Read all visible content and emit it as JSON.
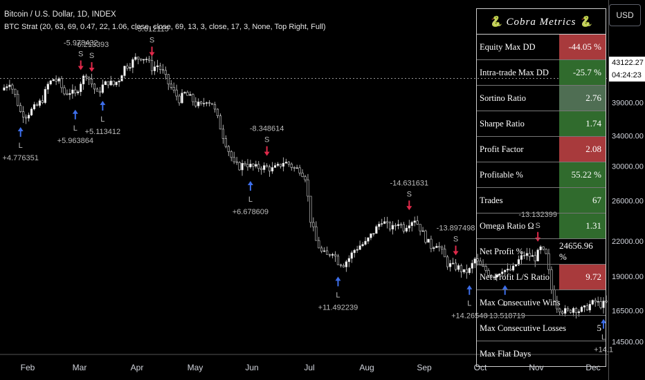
{
  "header": {
    "title": "Bitcoin / U.S. Dollar, 1D, INDEX",
    "strategy": "BTC Strat (20, 63, 69, 0.47, 22, 1.06, close, close, 69, 13, 3, close, 17, 3, None, Top Right, Full)"
  },
  "currency_button": "USD",
  "price_scale": {
    "current_price": "43122.27",
    "countdown": "04:24:23",
    "ticks": [
      "39000.00",
      "34000.00",
      "30000.00",
      "26000.00",
      "22000.00",
      "19000.00",
      "16500.00",
      "14500.00"
    ]
  },
  "metrics": {
    "title": "🐍 Cobra Metrics 🐍",
    "rows": [
      {
        "label": "Equity Max DD",
        "value": "-44.05 %",
        "status": "red"
      },
      {
        "label": "Intra-trade Max DD",
        "value": "-25.7 %",
        "status": "green"
      },
      {
        "label": "Sortino Ratio",
        "value": "2.76",
        "status": "grey"
      },
      {
        "label": "Sharpe Ratio",
        "value": "1.74",
        "status": "green"
      },
      {
        "label": "Profit Factor",
        "value": "2.08",
        "status": "red"
      },
      {
        "label": "Profitable %",
        "value": "55.22 %",
        "status": "green"
      },
      {
        "label": "Trades",
        "value": "67",
        "status": "green"
      },
      {
        "label": "Omega Ratio Ω",
        "value": "1.31",
        "status": "green"
      },
      {
        "label": "Net Profit %",
        "value": "24656.96 %",
        "status": "none"
      },
      {
        "label": "Net Profit L/S Ratio",
        "value": "9.72",
        "status": "red"
      },
      {
        "label": "Max Consecutive Wins",
        "value": "",
        "status": "none"
      },
      {
        "label": "Max Consecutive Losses",
        "value": "5",
        "status": "none"
      },
      {
        "label": "Max Flat Days",
        "value": "",
        "status": "none"
      }
    ]
  },
  "chart_data": {
    "type": "candlestick",
    "x_labels": [
      "Feb",
      "Mar",
      "Apr",
      "May",
      "Jun",
      "Jul",
      "Aug",
      "Sep",
      "Oct",
      "Nov",
      "Dec"
    ],
    "y_scale": "log",
    "ylim": [
      13800,
      52000
    ],
    "y_ticks": [
      39000,
      34000,
      30000,
      26000,
      22000,
      19000,
      16500,
      14500
    ],
    "current_price": 43122.27,
    "price_path": [
      [
        0,
        41500
      ],
      [
        2,
        42500
      ],
      [
        4,
        40200
      ],
      [
        6,
        37500
      ],
      [
        8,
        37000
      ],
      [
        10,
        37800
      ],
      [
        12,
        38500
      ],
      [
        14,
        39500
      ],
      [
        16,
        42000
      ],
      [
        18,
        43000
      ],
      [
        20,
        42500
      ],
      [
        22,
        40500
      ],
      [
        24,
        40800
      ],
      [
        26,
        40300
      ],
      [
        28,
        42500
      ],
      [
        30,
        44000
      ],
      [
        32,
        42200
      ],
      [
        34,
        40400
      ],
      [
        36,
        41800
      ],
      [
        38,
        42500
      ],
      [
        40,
        42000
      ],
      [
        42,
        43000
      ],
      [
        44,
        45200
      ],
      [
        46,
        45800
      ],
      [
        48,
        46800
      ],
      [
        50,
        47100
      ],
      [
        52,
        46800
      ],
      [
        54,
        45000
      ],
      [
        56,
        45500
      ],
      [
        58,
        44200
      ],
      [
        60,
        42200
      ],
      [
        62,
        40800
      ],
      [
        64,
        39500
      ],
      [
        66,
        40500
      ],
      [
        68,
        39800
      ],
      [
        70,
        38800
      ],
      [
        72,
        38500
      ],
      [
        74,
        39500
      ],
      [
        76,
        38900
      ],
      [
        78,
        36500
      ],
      [
        80,
        34000
      ],
      [
        82,
        32000
      ],
      [
        84,
        30200
      ],
      [
        86,
        29900
      ],
      [
        88,
        30400
      ],
      [
        90,
        30000
      ],
      [
        92,
        29800
      ],
      [
        94,
        29900
      ],
      [
        96,
        29800
      ],
      [
        98,
        29600
      ],
      [
        100,
        29900
      ],
      [
        102,
        30500
      ],
      [
        104,
        30300
      ],
      [
        106,
        29700
      ],
      [
        108,
        29600
      ],
      [
        110,
        28700
      ],
      [
        112,
        24000
      ],
      [
        114,
        22000
      ],
      [
        116,
        21000
      ],
      [
        118,
        20700
      ],
      [
        120,
        21100
      ],
      [
        122,
        20200
      ],
      [
        124,
        20000
      ],
      [
        126,
        20500
      ],
      [
        128,
        21200
      ],
      [
        130,
        21600
      ],
      [
        132,
        21800
      ],
      [
        134,
        22500
      ],
      [
        136,
        23200
      ],
      [
        138,
        24000
      ],
      [
        140,
        23400
      ],
      [
        142,
        23200
      ],
      [
        144,
        23800
      ],
      [
        146,
        23200
      ],
      [
        148,
        23800
      ],
      [
        150,
        24100
      ],
      [
        152,
        23200
      ],
      [
        154,
        22200
      ],
      [
        156,
        21500
      ],
      [
        158,
        21800
      ],
      [
        160,
        21000
      ],
      [
        162,
        20000
      ],
      [
        164,
        19800
      ],
      [
        166,
        19700
      ],
      [
        168,
        19300
      ],
      [
        170,
        19500
      ],
      [
        172,
        20400
      ],
      [
        174,
        19800
      ],
      [
        176,
        19500
      ],
      [
        178,
        19100
      ],
      [
        180,
        19200
      ],
      [
        182,
        19600
      ],
      [
        184,
        19400
      ],
      [
        186,
        19600
      ],
      [
        188,
        20300
      ],
      [
        190,
        20800
      ],
      [
        192,
        20700
      ],
      [
        194,
        20500
      ],
      [
        196,
        21300
      ],
      [
        198,
        20700
      ],
      [
        200,
        18000
      ],
      [
        202,
        16800
      ],
      [
        204,
        16500
      ],
      [
        206,
        16400
      ],
      [
        208,
        16700
      ],
      [
        210,
        16500
      ],
      [
        212,
        16600
      ],
      [
        214,
        16900
      ],
      [
        216,
        17100
      ],
      [
        218,
        16900
      ],
      [
        220,
        17000
      ]
    ],
    "markers": [
      {
        "i": 6,
        "dir": "L",
        "label": "+4.776351"
      },
      {
        "i": 26,
        "dir": "L",
        "label": "+5.963864"
      },
      {
        "i": 28,
        "dir": "S",
        "label": "-5.978432"
      },
      {
        "i": 32,
        "dir": "S",
        "label": "-6.213393"
      },
      {
        "i": 36,
        "dir": "L",
        "label": "+5.113412"
      },
      {
        "i": 54,
        "dir": "S",
        "label": "-5.012115"
      },
      {
        "i": 90,
        "dir": "L",
        "label": "+6.678609"
      },
      {
        "i": 96,
        "dir": "S",
        "label": "-8.348614"
      },
      {
        "i": 122,
        "dir": "L",
        "label": "+11.492239"
      },
      {
        "i": 148,
        "dir": "S",
        "label": "-14.631631"
      },
      {
        "i": 165,
        "dir": "S",
        "label": "-13.897498"
      },
      {
        "i": 170,
        "dir": "L",
        "label": "+14.26546"
      },
      {
        "i": 183,
        "dir": "L",
        "label": "+13.518719"
      },
      {
        "i": 195,
        "dir": "S",
        "label": "-13.132399"
      },
      {
        "i": 219,
        "dir": "L",
        "label": "+14.1"
      }
    ]
  }
}
